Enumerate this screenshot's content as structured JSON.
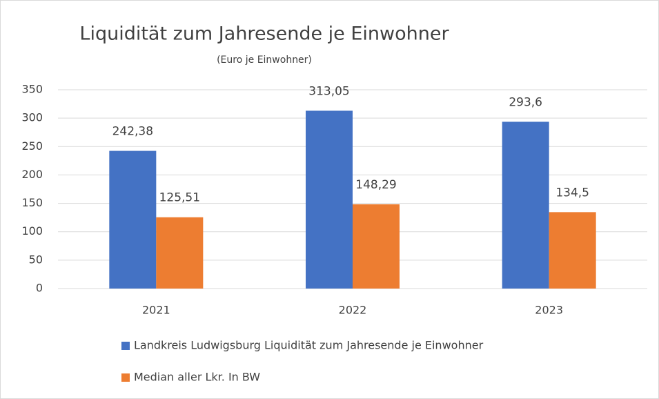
{
  "chart_data": {
    "type": "bar",
    "title": "Liquidität zum Jahresende je Einwohner",
    "subtitle": "(Euro je Einwohner)",
    "categories": [
      "2021",
      "2022",
      "2023"
    ],
    "series": [
      {
        "name": "Landkreis Ludwigsburg Liquidität zum Jahresende je Einwohner",
        "color": "#4472c4",
        "values": [
          242.38,
          313.05,
          293.6
        ],
        "value_labels": [
          "242,38",
          "313,05",
          "293,6"
        ]
      },
      {
        "name": "Median aller Lkr. In BW",
        "color": "#ed7d31",
        "values": [
          125.51,
          148.29,
          134.5
        ],
        "value_labels": [
          "125,51",
          "148,29",
          "134,5"
        ]
      }
    ],
    "ylim": [
      0,
      350
    ],
    "yticks": [
      0,
      50,
      100,
      150,
      200,
      250,
      300,
      350
    ],
    "grid": true,
    "legend": "bottom"
  }
}
